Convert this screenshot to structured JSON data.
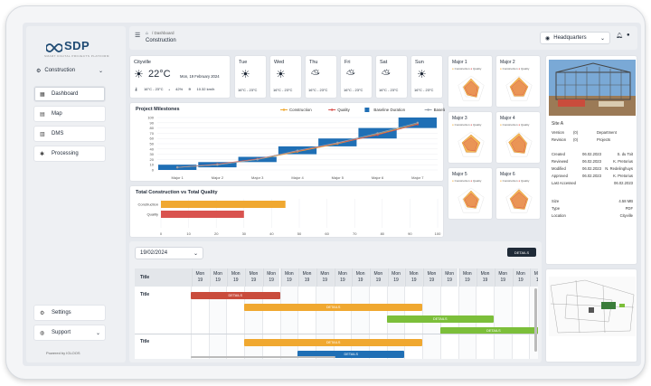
{
  "brand": {
    "name": "SDP",
    "tagline": "SMART DIGITAL PROJECTS PLATFORM",
    "powered": "Powered by IGLOOS"
  },
  "project_selector": {
    "value": "Construction"
  },
  "sidebar": {
    "items": [
      {
        "label": "Dashboard",
        "icon": "dashboard-icon"
      },
      {
        "label": "Map",
        "icon": "map-icon"
      },
      {
        "label": "DMS",
        "icon": "document-icon"
      },
      {
        "label": "Processing",
        "icon": "gear-icon"
      }
    ],
    "bottom": [
      {
        "label": "Settings",
        "icon": "settings-icon"
      },
      {
        "label": "Support",
        "icon": "support-icon"
      }
    ]
  },
  "header": {
    "breadcrumb": "Dashboard",
    "title": "Construction",
    "location": "Headquarters"
  },
  "weather": {
    "city": "Cityville",
    "temp": "22°C",
    "date": "Mon, 19 February 2024",
    "range": "16°C - 23°C",
    "humidity": "42%",
    "wind": "10.32 km/h",
    "days": [
      {
        "day": "Tue",
        "range": "16°C - 23°C",
        "icon": "sun-icon"
      },
      {
        "day": "Wed",
        "range": "16°C - 23°C",
        "icon": "sun-icon"
      },
      {
        "day": "Thu",
        "range": "16°C - 23°C",
        "icon": "cloud-sun-icon"
      },
      {
        "day": "Fri",
        "range": "16°C - 23°C",
        "icon": "cloud-sun-icon"
      },
      {
        "day": "Sat",
        "range": "16°C - 23°C",
        "icon": "cloud-sun-icon"
      },
      {
        "day": "Sun",
        "range": "16°C - 23°C",
        "icon": "sun-icon"
      }
    ]
  },
  "chart_data": [
    {
      "type": "bar",
      "title": "Project Milestones",
      "categories": [
        "Major 1",
        "Major 2",
        "Major 3",
        "Major 4",
        "Major 5",
        "Major 6",
        "Major 7"
      ],
      "ylim": [
        0,
        100
      ],
      "yticks": [
        0,
        10,
        20,
        30,
        40,
        50,
        60,
        70,
        80,
        90,
        100
      ],
      "legend": [
        "Construction",
        "Quality",
        "Baseline Duration",
        "Baseline"
      ],
      "series": [
        {
          "name": "Baseline Duration",
          "start": [
            0,
            5,
            15,
            30,
            45,
            60,
            80
          ],
          "end": [
            10,
            15,
            25,
            45,
            60,
            80,
            100
          ]
        },
        {
          "name": "Construction",
          "values": [
            5,
            10,
            20,
            35,
            50,
            68,
            88
          ]
        },
        {
          "name": "Quality",
          "values": [
            5,
            11,
            21,
            36,
            51,
            67,
            87
          ]
        },
        {
          "name": "Baseline",
          "values": [
            5,
            10,
            20,
            37,
            52,
            70,
            90
          ]
        }
      ],
      "colors": {
        "Construction": "#f0a830",
        "Quality": "#d9534f",
        "Baseline Duration": "#1f6fb5",
        "Baseline": "#9aa3ad"
      }
    },
    {
      "type": "bar",
      "title": "Total Construction vs Total Quality",
      "categories": [
        "Construction",
        "Quality"
      ],
      "values": [
        45,
        30
      ],
      "xlim": [
        0,
        100
      ],
      "xticks": [
        0,
        10,
        20,
        30,
        40,
        50,
        60,
        70,
        80,
        90,
        100
      ],
      "colors": [
        "#f0a830",
        "#d9534f"
      ]
    },
    {
      "type": "radar",
      "charts": [
        {
          "title": "Major 1",
          "axes": 5,
          "construction": [
            0.8,
            0.6,
            0.7,
            0.5,
            0.6
          ],
          "quality": [
            0.6,
            0.5,
            0.6,
            0.4,
            0.5
          ]
        },
        {
          "title": "Major 2",
          "axes": 5,
          "construction": [
            0.9,
            0.7,
            0.6,
            0.6,
            0.7
          ],
          "quality": [
            0.7,
            0.6,
            0.5,
            0.5,
            0.6
          ]
        },
        {
          "title": "Major 3",
          "axes": 5,
          "construction": [
            0.8,
            0.7,
            0.6,
            0.6,
            0.7
          ],
          "quality": [
            0.6,
            0.5,
            0.5,
            0.4,
            0.6
          ]
        },
        {
          "title": "Major 4",
          "axes": 5,
          "construction": [
            0.9,
            0.6,
            0.7,
            0.6,
            0.8
          ],
          "quality": [
            0.7,
            0.5,
            0.6,
            0.5,
            0.6
          ]
        },
        {
          "title": "Major 5",
          "axes": 5,
          "construction": [
            0.8,
            0.6,
            0.6,
            0.5,
            0.6
          ],
          "quality": [
            0.6,
            0.5,
            0.5,
            0.4,
            0.5
          ]
        },
        {
          "title": "Major 6",
          "axes": 5,
          "construction": [
            0.9,
            0.7,
            0.7,
            0.6,
            0.7
          ],
          "quality": [
            0.7,
            0.6,
            0.6,
            0.5,
            0.6
          ]
        }
      ],
      "legend": [
        "Construction",
        "Quality"
      ]
    }
  ],
  "site": {
    "name": "Site A",
    "fields_left": [
      [
        "Version",
        "(0)"
      ],
      [
        "Revision",
        "(0)"
      ]
    ],
    "fields_right": [
      [
        "Department",
        "Projects"
      ]
    ],
    "dates": [
      [
        "Created",
        "06.02.2023",
        "S. du Toit"
      ],
      [
        "Reviewed",
        "06.02.2023",
        "K. Pretorius"
      ],
      [
        "Modified",
        "06.02.2023",
        "N. Redelinghuys"
      ],
      [
        "Approved",
        "06.02.2023",
        "K. Pretorius"
      ],
      [
        "Last Accessed",
        "",
        "06.02.2023"
      ]
    ],
    "file": [
      [
        "Size",
        "4.58 MB"
      ],
      [
        "Type",
        "PDF"
      ],
      [
        "Location",
        "Cityville"
      ]
    ]
  },
  "gantt": {
    "date": "19/02/2024",
    "details_button": "DETAILS",
    "header_title": "Title",
    "cols": [
      {
        "d": "Mon",
        "n": "19"
      }
    ],
    "col_count": 20,
    "rows": [
      {
        "title": "Title",
        "bars": [
          {
            "label": "DETAILS",
            "start": 0,
            "len": 5,
            "color": "#c94c3c"
          },
          {
            "label": "DETAILS",
            "start": 3,
            "len": 10,
            "color": "#f0a830"
          },
          {
            "label": "DETAILS",
            "start": 11,
            "len": 6,
            "color": "#7cbf3a"
          },
          {
            "label": "DETAILS",
            "start": 14,
            "len": 6,
            "color": "#7cbf3a"
          }
        ]
      },
      {
        "title": "Title",
        "bars": [
          {
            "label": "DETAILS",
            "start": 3,
            "len": 10,
            "color": "#f0a830"
          },
          {
            "label": "DETAILS",
            "start": 6,
            "len": 6,
            "color": "#1f6fb5"
          }
        ]
      }
    ]
  }
}
